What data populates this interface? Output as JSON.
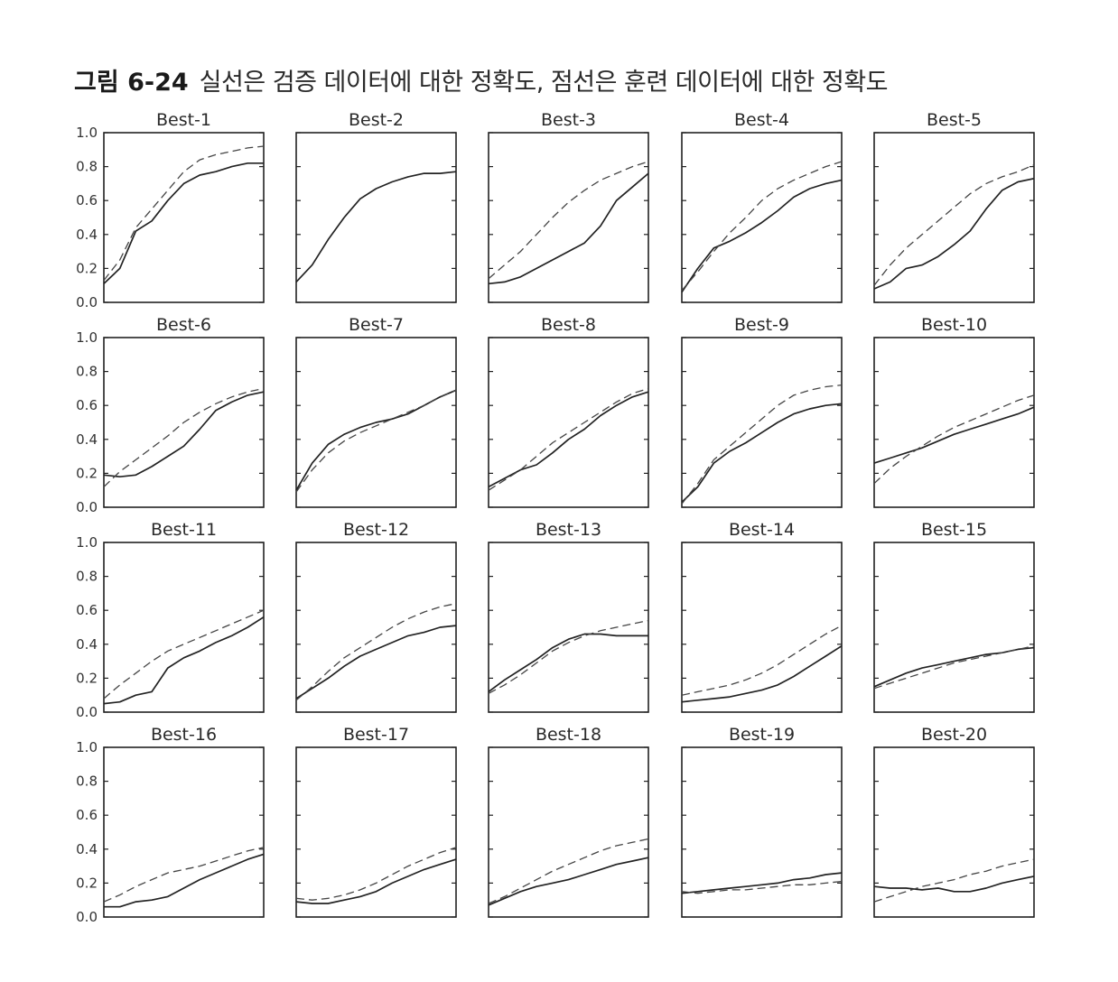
{
  "caption": {
    "label": "그림 6-24",
    "text": "실선은 검증 데이터에 대한 정확도, 점선은 훈련 데이터에 대한 정확도"
  },
  "colors": {
    "validation": "#222222",
    "training": "#444444",
    "frame": "#222222"
  },
  "chart_data": {
    "type": "line",
    "layout": {
      "rows": 4,
      "cols": 5
    },
    "ylim": [
      0.0,
      1.0
    ],
    "yticks": [
      "0.0",
      "0.2",
      "0.4",
      "0.6",
      "0.8",
      "1.0"
    ],
    "x": [
      0,
      1,
      2,
      3,
      4,
      5,
      6,
      7,
      8,
      9,
      10
    ],
    "series_styles": [
      {
        "key": "validation",
        "style": "solid"
      },
      {
        "key": "training",
        "style": "dashed"
      }
    ],
    "panels": [
      {
        "title": "Best-1",
        "validation": [
          0.11,
          0.2,
          0.42,
          0.48,
          0.6,
          0.7,
          0.75,
          0.77,
          0.8,
          0.82,
          0.82
        ],
        "training": [
          0.13,
          0.25,
          0.44,
          0.55,
          0.66,
          0.77,
          0.84,
          0.87,
          0.89,
          0.91,
          0.92
        ]
      },
      {
        "title": "Best-2",
        "validation": [
          0.12,
          0.22,
          0.37,
          0.5,
          0.61,
          0.67,
          0.71,
          0.74,
          0.76,
          0.76,
          0.77
        ]
      },
      {
        "title": "Best-3",
        "validation": [
          0.11,
          0.12,
          0.15,
          0.2,
          0.25,
          0.3,
          0.35,
          0.45,
          0.6,
          0.68,
          0.76
        ],
        "training": [
          0.14,
          0.22,
          0.3,
          0.4,
          0.5,
          0.59,
          0.66,
          0.72,
          0.76,
          0.8,
          0.83
        ]
      },
      {
        "title": "Best-4",
        "validation": [
          0.06,
          0.2,
          0.32,
          0.36,
          0.41,
          0.47,
          0.54,
          0.62,
          0.67,
          0.7,
          0.72
        ],
        "training": [
          0.07,
          0.18,
          0.3,
          0.41,
          0.5,
          0.6,
          0.67,
          0.72,
          0.76,
          0.8,
          0.83
        ]
      },
      {
        "title": "Best-5",
        "validation": [
          0.08,
          0.12,
          0.2,
          0.22,
          0.27,
          0.34,
          0.42,
          0.55,
          0.66,
          0.71,
          0.73
        ],
        "training": [
          0.1,
          0.22,
          0.32,
          0.4,
          0.48,
          0.56,
          0.64,
          0.7,
          0.74,
          0.77,
          0.81
        ]
      },
      {
        "title": "Best-6",
        "validation": [
          0.19,
          0.18,
          0.19,
          0.24,
          0.3,
          0.36,
          0.46,
          0.57,
          0.62,
          0.66,
          0.68
        ],
        "training": [
          0.12,
          0.21,
          0.28,
          0.35,
          0.42,
          0.5,
          0.56,
          0.61,
          0.65,
          0.68,
          0.7
        ]
      },
      {
        "title": "Best-7",
        "validation": [
          0.1,
          0.26,
          0.37,
          0.43,
          0.47,
          0.5,
          0.52,
          0.55,
          0.6,
          0.65,
          0.69
        ],
        "training": [
          0.09,
          0.22,
          0.32,
          0.39,
          0.44,
          0.48,
          0.52,
          0.56,
          0.6,
          0.65,
          0.69
        ]
      },
      {
        "title": "Best-8",
        "validation": [
          0.12,
          0.17,
          0.22,
          0.25,
          0.32,
          0.4,
          0.46,
          0.54,
          0.6,
          0.65,
          0.68
        ],
        "training": [
          0.1,
          0.16,
          0.22,
          0.3,
          0.38,
          0.44,
          0.5,
          0.56,
          0.62,
          0.67,
          0.7
        ]
      },
      {
        "title": "Best-9",
        "validation": [
          0.03,
          0.12,
          0.26,
          0.33,
          0.38,
          0.44,
          0.5,
          0.55,
          0.58,
          0.6,
          0.61
        ],
        "training": [
          0.02,
          0.14,
          0.28,
          0.36,
          0.44,
          0.52,
          0.6,
          0.66,
          0.69,
          0.71,
          0.72
        ]
      },
      {
        "title": "Best-10",
        "validation": [
          0.26,
          0.29,
          0.32,
          0.35,
          0.39,
          0.43,
          0.46,
          0.49,
          0.52,
          0.55,
          0.59
        ],
        "training": [
          0.14,
          0.23,
          0.3,
          0.36,
          0.42,
          0.47,
          0.51,
          0.55,
          0.59,
          0.63,
          0.66
        ]
      },
      {
        "title": "Best-11",
        "validation": [
          0.05,
          0.06,
          0.1,
          0.12,
          0.26,
          0.32,
          0.36,
          0.41,
          0.45,
          0.5,
          0.56
        ],
        "training": [
          0.08,
          0.16,
          0.23,
          0.3,
          0.36,
          0.4,
          0.44,
          0.48,
          0.52,
          0.56,
          0.6
        ]
      },
      {
        "title": "Best-12",
        "validation": [
          0.08,
          0.14,
          0.2,
          0.27,
          0.33,
          0.37,
          0.41,
          0.45,
          0.47,
          0.5,
          0.51
        ],
        "training": [
          0.07,
          0.15,
          0.24,
          0.32,
          0.38,
          0.44,
          0.5,
          0.55,
          0.59,
          0.62,
          0.64
        ]
      },
      {
        "title": "Best-13",
        "validation": [
          0.12,
          0.19,
          0.25,
          0.31,
          0.38,
          0.43,
          0.46,
          0.46,
          0.45,
          0.45,
          0.45
        ],
        "training": [
          0.11,
          0.16,
          0.22,
          0.29,
          0.36,
          0.41,
          0.45,
          0.48,
          0.5,
          0.52,
          0.54
        ]
      },
      {
        "title": "Best-14",
        "validation": [
          0.06,
          0.07,
          0.08,
          0.09,
          0.11,
          0.13,
          0.16,
          0.21,
          0.27,
          0.33,
          0.39
        ],
        "training": [
          0.1,
          0.12,
          0.14,
          0.16,
          0.19,
          0.23,
          0.28,
          0.34,
          0.4,
          0.46,
          0.51
        ]
      },
      {
        "title": "Best-15",
        "validation": [
          0.15,
          0.19,
          0.23,
          0.26,
          0.28,
          0.3,
          0.32,
          0.34,
          0.35,
          0.37,
          0.38
        ],
        "training": [
          0.14,
          0.17,
          0.2,
          0.23,
          0.26,
          0.29,
          0.31,
          0.33,
          0.35,
          0.37,
          0.39
        ]
      },
      {
        "title": "Best-16",
        "validation": [
          0.06,
          0.06,
          0.09,
          0.1,
          0.12,
          0.17,
          0.22,
          0.26,
          0.3,
          0.34,
          0.37
        ],
        "training": [
          0.09,
          0.13,
          0.18,
          0.22,
          0.26,
          0.28,
          0.3,
          0.33,
          0.36,
          0.39,
          0.41
        ]
      },
      {
        "title": "Best-17",
        "validation": [
          0.09,
          0.08,
          0.08,
          0.1,
          0.12,
          0.15,
          0.2,
          0.24,
          0.28,
          0.31,
          0.34
        ],
        "training": [
          0.11,
          0.1,
          0.11,
          0.13,
          0.16,
          0.2,
          0.25,
          0.3,
          0.34,
          0.38,
          0.41
        ]
      },
      {
        "title": "Best-18",
        "validation": [
          0.07,
          0.11,
          0.15,
          0.18,
          0.2,
          0.22,
          0.25,
          0.28,
          0.31,
          0.33,
          0.35
        ],
        "training": [
          0.08,
          0.12,
          0.17,
          0.22,
          0.27,
          0.31,
          0.35,
          0.39,
          0.42,
          0.44,
          0.46
        ]
      },
      {
        "title": "Best-19",
        "validation": [
          0.14,
          0.15,
          0.16,
          0.17,
          0.18,
          0.19,
          0.2,
          0.22,
          0.23,
          0.25,
          0.26
        ],
        "training": [
          0.15,
          0.14,
          0.15,
          0.16,
          0.16,
          0.17,
          0.18,
          0.19,
          0.19,
          0.2,
          0.21
        ]
      },
      {
        "title": "Best-20",
        "validation": [
          0.18,
          0.17,
          0.17,
          0.16,
          0.17,
          0.15,
          0.15,
          0.17,
          0.2,
          0.22,
          0.24
        ],
        "training": [
          0.09,
          0.12,
          0.15,
          0.18,
          0.2,
          0.22,
          0.25,
          0.27,
          0.3,
          0.32,
          0.34
        ]
      }
    ]
  }
}
